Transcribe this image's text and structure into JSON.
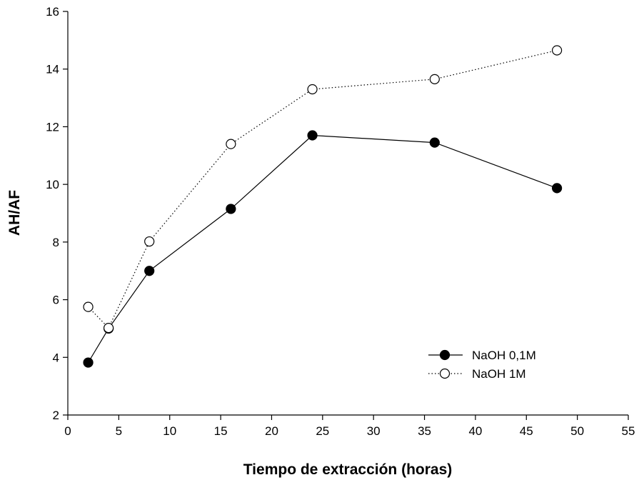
{
  "chart_data": {
    "type": "line",
    "xlabel": "Tiempo de extracción (horas)",
    "ylabel": "AH/AF",
    "xlim": [
      0,
      55
    ],
    "ylim": [
      2,
      16
    ],
    "xticks": [
      0,
      5,
      10,
      15,
      20,
      25,
      30,
      35,
      40,
      45,
      50,
      55
    ],
    "yticks": [
      2,
      4,
      6,
      8,
      10,
      12,
      14,
      16
    ],
    "grid": false,
    "legend_position": "bottom-right",
    "series": [
      {
        "name": "NaOH 0,1M",
        "marker": "filled-circle",
        "line_style": "solid",
        "x": [
          2,
          4,
          8,
          16,
          24,
          36,
          48
        ],
        "y": [
          3.82,
          5.0,
          7.0,
          9.15,
          11.7,
          11.45,
          9.87
        ]
      },
      {
        "name": "NaOH 1M",
        "marker": "open-circle",
        "line_style": "dotted",
        "x": [
          2,
          4,
          8,
          16,
          24,
          36,
          48
        ],
        "y": [
          5.75,
          5.02,
          8.02,
          11.4,
          13.3,
          13.65,
          14.65
        ]
      }
    ]
  }
}
